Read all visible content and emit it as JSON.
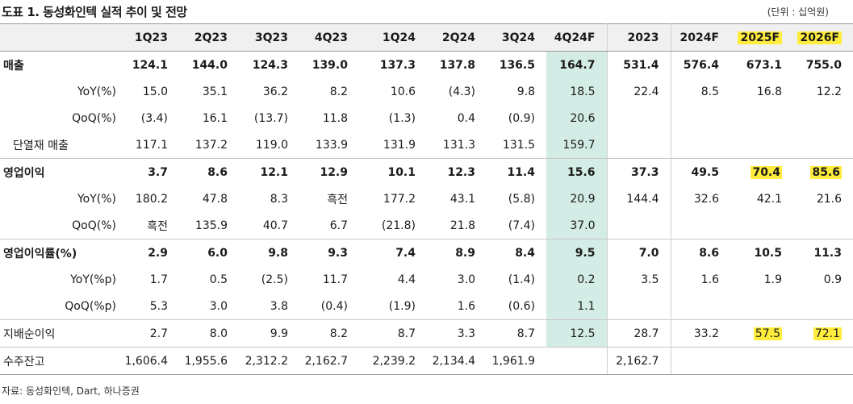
{
  "title": "도표 1. 동성화인텍 실적 추이 및 전망",
  "unit": "(단위 : 십억원)",
  "source": "자료: 동성화인텍, Dart, 하나증권",
  "table": {
    "columns": [
      "1Q23",
      "2Q23",
      "3Q23",
      "4Q23",
      "1Q24",
      "2Q24",
      "3Q24",
      "4Q24F",
      "2023",
      "2024F",
      "2025F",
      "2026F"
    ],
    "highlight_header_columns": [
      10,
      11
    ],
    "shaded_column": 7,
    "rows": [
      {
        "label": "매출",
        "style": "main",
        "values": [
          "124.1",
          "144.0",
          "124.3",
          "139.0",
          "137.3",
          "137.8",
          "136.5",
          "164.7",
          "531.4",
          "576.4",
          "673.1",
          "755.0"
        ],
        "highlight": []
      },
      {
        "label": "YoY(%)",
        "style": "sub",
        "values": [
          "15.0",
          "35.1",
          "36.2",
          "8.2",
          "10.6",
          "(4.3)",
          "9.8",
          "18.5",
          "22.4",
          "8.5",
          "16.8",
          "12.2"
        ],
        "highlight": []
      },
      {
        "label": "QoQ(%)",
        "style": "sub",
        "values": [
          "(3.4)",
          "16.1",
          "(13.7)",
          "11.8",
          "(1.3)",
          "0.4",
          "(0.9)",
          "20.6",
          "",
          "",
          "",
          ""
        ],
        "highlight": []
      },
      {
        "label": "단열재 매출",
        "style": "indent",
        "values": [
          "117.1",
          "137.2",
          "119.0",
          "133.9",
          "131.9",
          "131.3",
          "131.5",
          "159.7",
          "",
          "",
          "",
          ""
        ],
        "highlight": []
      },
      {
        "label": "영업이익",
        "style": "main",
        "values": [
          "3.7",
          "8.6",
          "12.1",
          "12.9",
          "10.1",
          "12.3",
          "11.4",
          "15.6",
          "37.3",
          "49.5",
          "70.4",
          "85.6"
        ],
        "highlight": [
          10,
          11
        ]
      },
      {
        "label": "YoY(%)",
        "style": "sub",
        "values": [
          "180.2",
          "47.8",
          "8.3",
          "흑전",
          "177.2",
          "43.1",
          "(5.8)",
          "20.9",
          "144.4",
          "32.6",
          "42.1",
          "21.6"
        ],
        "highlight": []
      },
      {
        "label": "QoQ(%)",
        "style": "sub",
        "values": [
          "흑전",
          "135.9",
          "40.7",
          "6.7",
          "(21.8)",
          "21.8",
          "(7.4)",
          "37.0",
          "",
          "",
          "",
          ""
        ],
        "highlight": []
      },
      {
        "label": "영업이익률(%)",
        "style": "main",
        "values": [
          "2.9",
          "6.0",
          "9.8",
          "9.3",
          "7.4",
          "8.9",
          "8.4",
          "9.5",
          "7.0",
          "8.6",
          "10.5",
          "11.3"
        ],
        "highlight": []
      },
      {
        "label": "YoY(%p)",
        "style": "sub",
        "values": [
          "1.7",
          "0.5",
          "(2.5)",
          "11.7",
          "4.4",
          "3.0",
          "(1.4)",
          "0.2",
          "3.5",
          "1.6",
          "1.9",
          "0.9"
        ],
        "highlight": []
      },
      {
        "label": "QoQ(%p)",
        "style": "sub",
        "values": [
          "5.3",
          "3.0",
          "3.8",
          "(0.4)",
          "(1.9)",
          "1.6",
          "(0.6)",
          "1.1",
          "",
          "",
          "",
          ""
        ],
        "highlight": []
      },
      {
        "label": "지배순이익",
        "style": "plain",
        "values": [
          "2.7",
          "8.0",
          "9.9",
          "8.2",
          "8.7",
          "3.3",
          "8.7",
          "12.5",
          "28.7",
          "33.2",
          "57.5",
          "72.1"
        ],
        "highlight": [
          10,
          11
        ]
      },
      {
        "label": "수주잔고",
        "style": "plain",
        "values": [
          "1,606.4",
          "1,955.6",
          "2,312.2",
          "2,162.7",
          "2,239.2",
          "2,134.4",
          "1,961.9",
          "",
          "2,162.7",
          "",
          "",
          ""
        ],
        "highlight": []
      }
    ]
  }
}
